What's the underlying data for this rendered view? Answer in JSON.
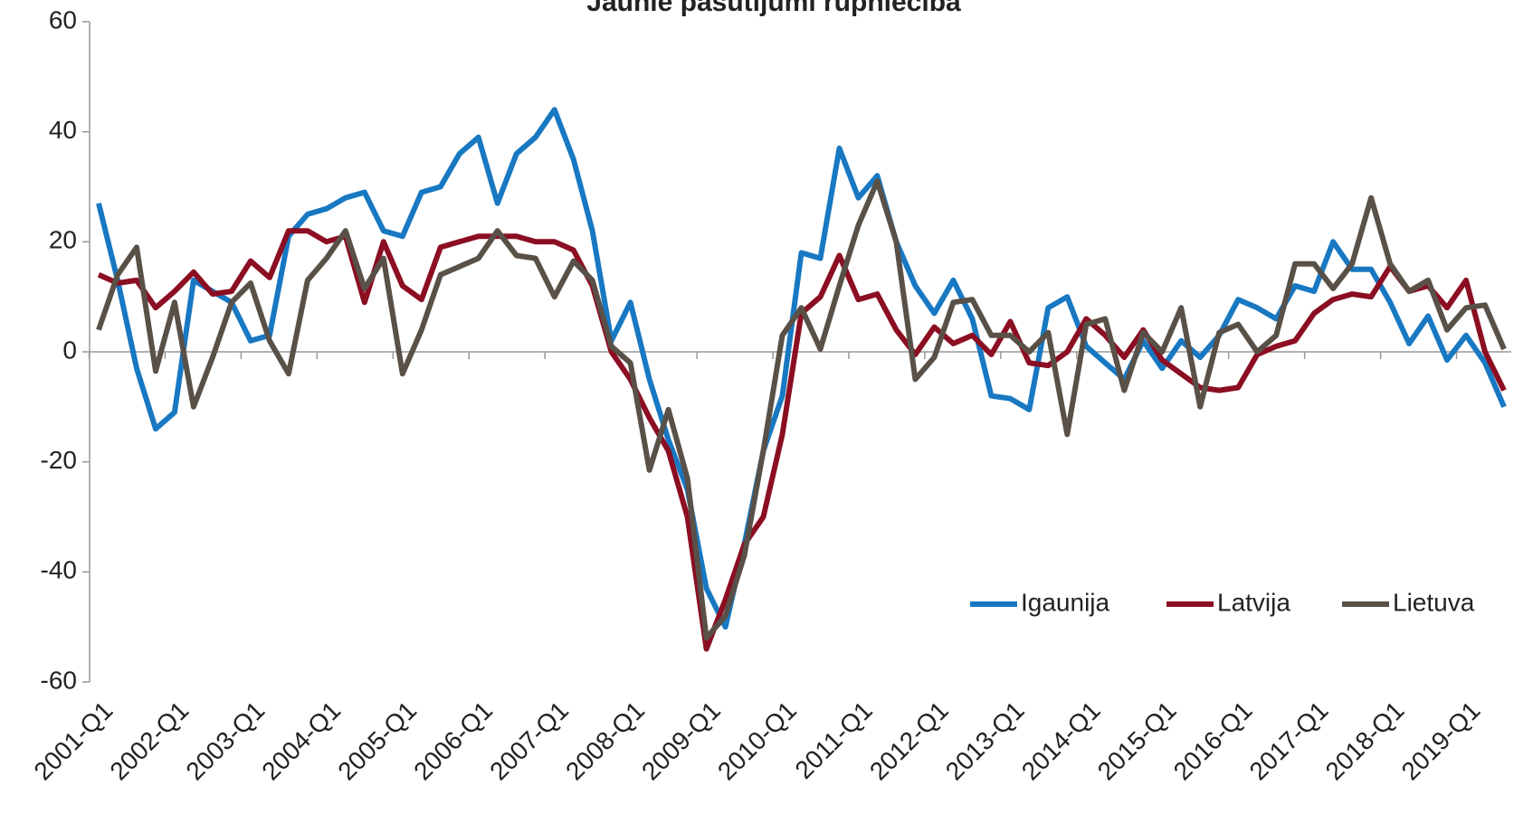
{
  "chart_data": {
    "type": "line",
    "title": "Jaunie pasūtījumi rūpniecībā",
    "categories": [
      "2001-Q1",
      null,
      null,
      null,
      "2002-Q1",
      null,
      null,
      null,
      "2003-Q1",
      null,
      null,
      null,
      "2004-Q1",
      null,
      null,
      null,
      "2005-Q1",
      null,
      null,
      null,
      "2006-Q1",
      null,
      null,
      null,
      "2007-Q1",
      null,
      null,
      null,
      "2008-Q1",
      null,
      null,
      null,
      "2009-Q1",
      null,
      null,
      null,
      "2010-Q1",
      null,
      null,
      null,
      "2011-Q1",
      null,
      null,
      null,
      "2012-Q1",
      null,
      null,
      null,
      "2013-Q1",
      null,
      null,
      null,
      "2014-Q1",
      null,
      null,
      null,
      "2015-Q1",
      null,
      null,
      null,
      "2016-Q1",
      null,
      null,
      null,
      "2017-Q1",
      null,
      null,
      null,
      "2018-Q1",
      null,
      null,
      null,
      "2019-Q1",
      null,
      null
    ],
    "series": [
      {
        "name": "Igaunija",
        "color": "#1878c2",
        "values": [
          27,
          13,
          -3,
          -14,
          -11,
          13,
          11,
          9,
          2,
          3,
          21,
          25,
          26,
          28,
          29,
          22,
          21,
          29,
          30,
          36,
          39,
          27,
          36,
          39,
          44,
          35,
          22,
          2,
          9,
          -5,
          -16,
          -25,
          -43,
          -50,
          -35,
          -18,
          -8,
          18,
          17,
          37,
          28,
          32,
          20,
          12,
          7,
          13,
          6,
          -8,
          -8.5,
          -10.5,
          8,
          10,
          1,
          -2,
          -5,
          2,
          -3,
          2,
          -1,
          3,
          9.5,
          8,
          6,
          12,
          11,
          20,
          15,
          15,
          9,
          1.5,
          6.5,
          -1.5,
          3,
          -2,
          -10
        ]
      },
      {
        "name": "Latvija",
        "color": "#8b0e22",
        "values": [
          14,
          12.5,
          13,
          8,
          11,
          14.5,
          10.5,
          11,
          16.5,
          13.5,
          22,
          22,
          20,
          21,
          9,
          20,
          12,
          9.5,
          19,
          20,
          21,
          21,
          21,
          20,
          20,
          18.5,
          12,
          0,
          -5,
          -12,
          -18,
          -30,
          -54,
          -45,
          -35,
          -30,
          -15,
          7,
          10,
          17.5,
          9.5,
          10.5,
          4,
          -0.5,
          4.5,
          1.5,
          3,
          -0.5,
          5.5,
          -2,
          -2.5,
          0,
          6,
          3,
          -1,
          4,
          -1.5,
          -4,
          -6.5,
          -7,
          -6.5,
          -0.5,
          1,
          2,
          7,
          9.5,
          10.5,
          10,
          15.5,
          11,
          12,
          8,
          13,
          0,
          -7
        ]
      },
      {
        "name": "Lietuva",
        "color": "#595048",
        "values": [
          4,
          14,
          19,
          -3.5,
          9,
          -10,
          -1,
          9,
          12.5,
          2,
          -4,
          13,
          17,
          22,
          11.5,
          17,
          -4,
          4,
          14,
          15.5,
          17,
          22,
          17.5,
          17,
          10,
          16.5,
          13,
          1,
          -2,
          -21.5,
          -10.5,
          -23,
          -52,
          -48,
          -37,
          -18,
          3,
          8,
          0.5,
          12,
          23,
          31,
          20,
          -5,
          -1,
          9,
          9.5,
          3,
          3,
          0,
          3.5,
          -15,
          5,
          6,
          -7,
          3.5,
          0,
          8,
          -10,
          3.5,
          5,
          0,
          3,
          16,
          16,
          11.5,
          16,
          28,
          16,
          11,
          13,
          4,
          8,
          8.5,
          0.5
        ]
      }
    ],
    "ylim": [
      -60,
      60
    ],
    "yticks": [
      -60,
      -40,
      -20,
      0,
      20,
      40,
      60
    ],
    "grid": false,
    "legend": "lower right"
  }
}
